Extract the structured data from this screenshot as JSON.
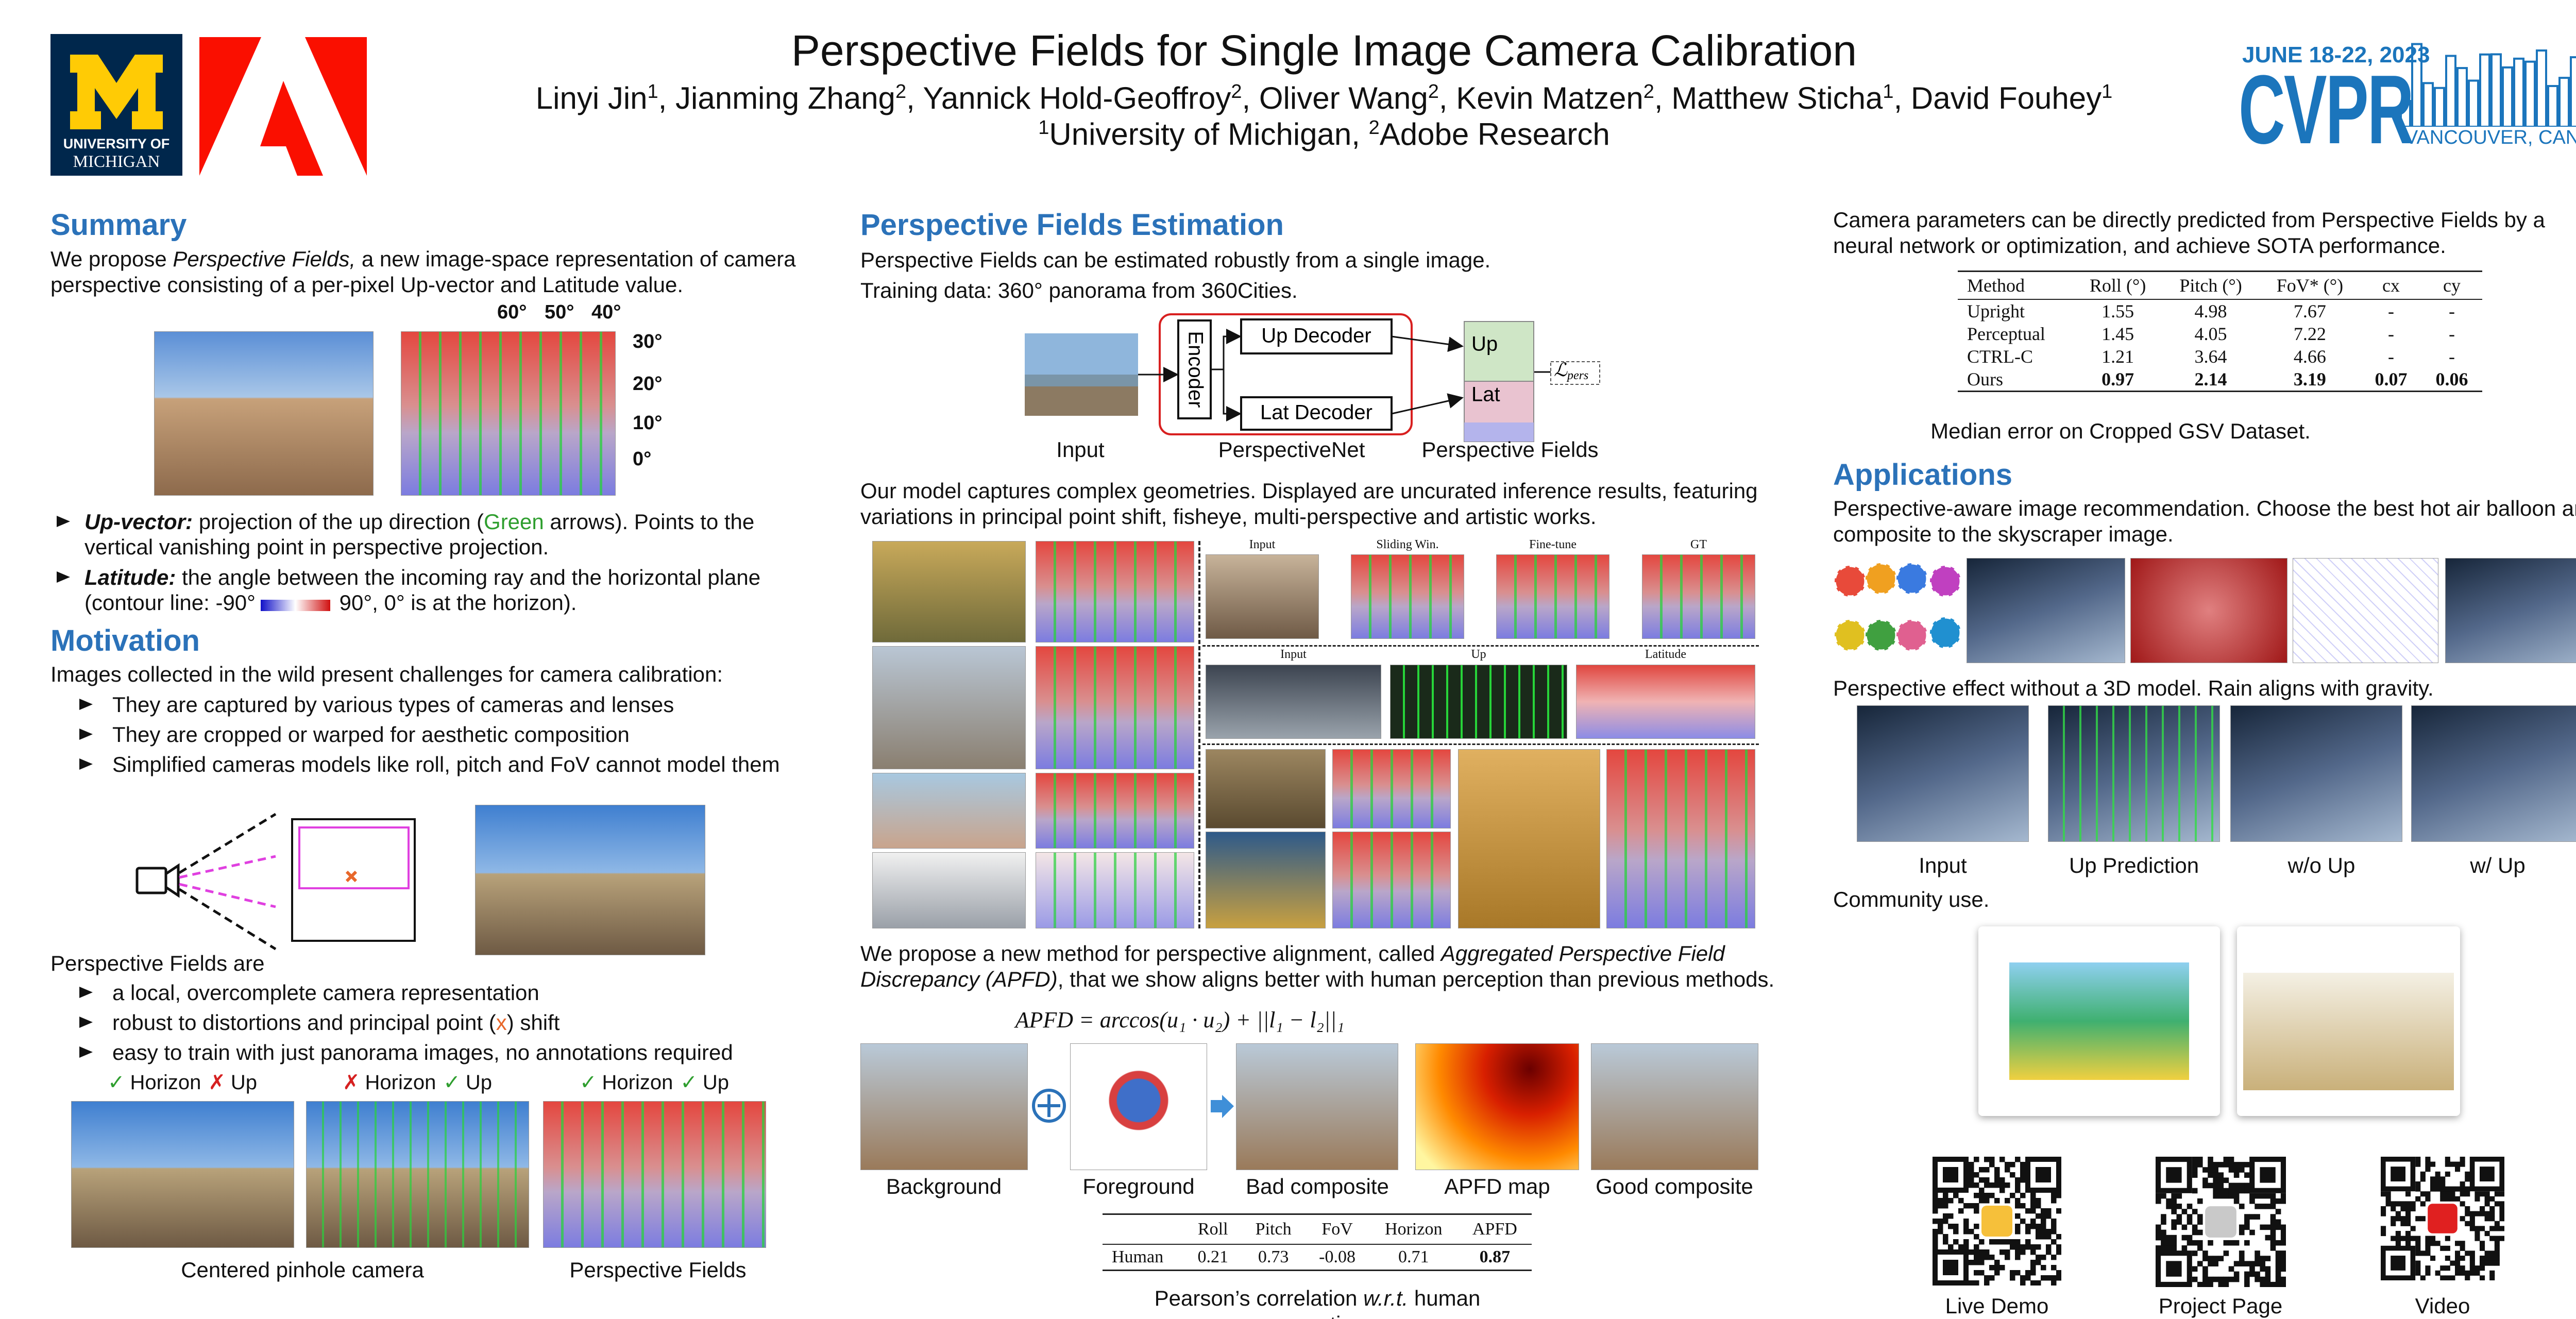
{
  "header": {
    "title": "Perspective Fields for Single Image Camera Calibration",
    "authors": [
      {
        "name": "Linyi Jin",
        "sup": "1"
      },
      {
        "name": ", Jianming Zhang",
        "sup": "2"
      },
      {
        "name": ", Yannick Hold-Geoffroy",
        "sup": "2"
      },
      {
        "name": ", Oliver Wang",
        "sup": "2"
      },
      {
        "name": ", Kevin Matzen",
        "sup": "2"
      },
      {
        "name": ", Matthew Sticha",
        "sup": "1"
      },
      {
        "name": ", David Fouhey",
        "sup": "1"
      }
    ],
    "affiliations": [
      {
        "sup": "1",
        "name": "University of Michigan, "
      },
      {
        "sup": "2",
        "name": "Adobe Research"
      }
    ],
    "umich_logo": [
      "UNIVERSITY OF",
      "MICHIGAN"
    ],
    "cvpr": {
      "dates": "JUNE 18-22, 2023",
      "name": "CVPR",
      "location": "VANCOUVER, CANADA"
    }
  },
  "summary": {
    "heading": "Summary",
    "intro": [
      "We propose ",
      "Perspective Fields,",
      " a new image-space representation of camera perspective consisting of a per-pixel Up-vector and Latitude value."
    ],
    "figure_top_labels": [
      "60°",
      "50°",
      "40°"
    ],
    "figure_side_labels": [
      "30°",
      "20°",
      "10°",
      "0°"
    ],
    "up_vector": [
      "Up-vector:",
      " projection of the up direction (",
      "Green",
      " arrows). Points to the vertical vanishing point in perspective projection."
    ],
    "latitude": [
      "Latitude:",
      " the angle between the incoming ray and the horizontal plane (contour line: -90°",
      " 90°, 0° is at the horizon)."
    ]
  },
  "motivation": {
    "heading": "Motivation",
    "intro": "Images collected in the wild present challenges for camera calibration:",
    "challenges": [
      "They are captured by various types of cameras and lenses",
      "They are cropped or warped for aesthetic composition",
      "Simplified cameras models like roll, pitch and FoV cannot model them"
    ],
    "pf_intro": "Perspective Fields are",
    "pf_points": [
      "a local, overcomplete camera representation",
      [
        "robust to distortions and principal point (",
        "x",
        ") shift"
      ],
      "easy to train with just panorama images, no annotations required"
    ],
    "checks": [
      {
        "horizon_mark": "✓",
        "horizon_color": "#2e9e2e",
        "horizon": "Horizon",
        "up_mark": "✗",
        "up_color": "#d62020",
        "up": "Up"
      },
      {
        "horizon_mark": "✗",
        "horizon_color": "#d62020",
        "horizon": "Horizon",
        "up_mark": "✓",
        "up_color": "#2e9e2e",
        "up": "Up"
      },
      {
        "horizon_mark": "✓",
        "horizon_color": "#2e9e2e",
        "horizon": "Horizon",
        "up_mark": "✓",
        "up_color": "#2e9e2e",
        "up": "Up"
      }
    ],
    "captions": [
      "Centered pinhole camera",
      "Perspective Fields"
    ]
  },
  "estimation": {
    "heading": "Perspective Fields Estimation",
    "lines": [
      "Perspective Fields can be estimated robustly from a single image.",
      "Training data: 360° panorama from 360Cities."
    ],
    "diagram": {
      "encoder": "Encoder",
      "up_decoder": "Up Decoder",
      "lat_decoder": "Lat Decoder",
      "up": "Up",
      "lat": "Lat",
      "loss": "ℒ",
      "loss_sub": "pers",
      "labels": [
        "Input",
        "PerspectiveNet",
        "Perspective Fields"
      ]
    },
    "geometries": "Our model captures complex geometries. Displayed are uncurated inference results, featuring variations in principal point shift, fisheye, multi-perspective and artistic works.",
    "grid_labels": {
      "row1": [
        "Input",
        "Sliding Win.",
        "Fine-tune",
        "GT"
      ],
      "row2": [
        "Input",
        "Up",
        "Latitude"
      ]
    },
    "apfd_text": [
      "We propose a new method for perspective alignment, called ",
      "Aggregated Perspective Field Discrepancy (APFD)",
      ", that we show aligns better with human perception than previous methods."
    ],
    "formula": "APFD = arccos(u₁ · u₂) + ||l₁ − l₂||₁",
    "apfd_labels": [
      "Background",
      "Foreground",
      "Bad composite",
      "APFD map",
      "Good composite"
    ],
    "pearson": {
      "header": [
        "Roll",
        "Pitch",
        "FoV",
        "Horizon",
        "APFD"
      ],
      "row": {
        "name": "Human",
        "values": [
          0.21,
          0.73,
          -0.08,
          0.71,
          0.87
        ]
      }
    },
    "pearson_caption": [
      "Pearson’s correlation ",
      "w.r.t.",
      " human perception."
    ]
  },
  "results": {
    "text": "Camera parameters can be directly predicted from Perspective Fields by a neural network or optimization, and achieve SOTA performance.",
    "table": {
      "header": [
        "Method",
        "Roll (°)",
        "Pitch (°)",
        "FoV* (°)",
        "cx",
        "cy"
      ],
      "rows": [
        [
          "Upright",
          1.55,
          4.98,
          7.67,
          "-",
          "-"
        ],
        [
          "Perceptual",
          1.45,
          4.05,
          7.22,
          "-",
          "-"
        ],
        [
          "CTRL-C",
          1.21,
          3.64,
          4.66,
          "-",
          "-"
        ],
        [
          "Ours",
          0.97,
          2.14,
          3.19,
          0.07,
          0.06
        ]
      ]
    },
    "caption": "Median error on Cropped GSV Dataset."
  },
  "applications": {
    "heading": "Applications",
    "recommendation": "Perspective-aware image recommendation. Choose the best hot air balloon and composite to the skyscraper image.",
    "effect": "Perspective effect without a 3D model. Rain aligns with gravity.",
    "effect_labels": [
      "Input",
      "Up Prediction",
      "w/o Up",
      "w/ Up"
    ],
    "community": "Community use.",
    "qr_labels": [
      "Live Demo",
      "Project Page",
      "Video"
    ]
  }
}
